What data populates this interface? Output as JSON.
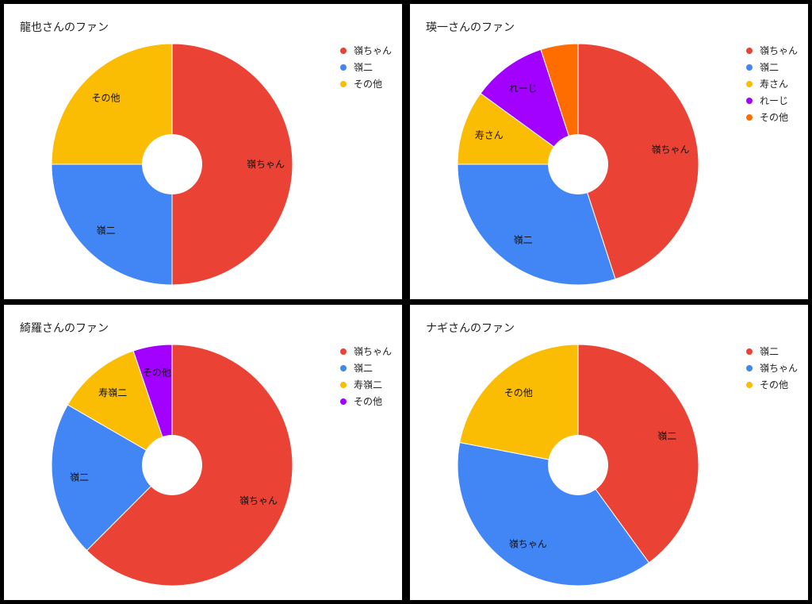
{
  "colors": {
    "red": "#EA4335",
    "blue": "#4285F4",
    "yellow": "#FBBC04",
    "purple": "#A200FF",
    "orange": "#FF6D01"
  },
  "chart_data": [
    {
      "type": "pie",
      "title": "龍也さんのファン",
      "legend_position": "right",
      "categories": [
        "嶺ちゃん",
        "嶺二",
        "その他"
      ],
      "values": [
        50,
        25,
        25
      ],
      "colors": [
        "#EA4335",
        "#4285F4",
        "#FBBC04"
      ],
      "slice_labels": [
        "嶺ちゃん",
        "嶺二",
        "その他"
      ]
    },
    {
      "type": "pie",
      "title": "瑛一さんのファン",
      "legend_position": "right",
      "categories": [
        "嶺ちゃん",
        "嶺二",
        "寿さん",
        "れーじ",
        "その他"
      ],
      "values": [
        45,
        30,
        10,
        10,
        5
      ],
      "colors": [
        "#EA4335",
        "#4285F4",
        "#FBBC04",
        "#A200FF",
        "#FF6D01"
      ],
      "slice_labels": [
        "嶺ちゃん",
        "嶺二",
        "寿さん",
        "れーじ",
        ""
      ]
    },
    {
      "type": "pie",
      "title": "綺羅さんのファン",
      "legend_position": "right",
      "categories": [
        "嶺ちゃん",
        "嶺二",
        "寿嶺二",
        "その他"
      ],
      "values": [
        60,
        20,
        11,
        5
      ],
      "colors": [
        "#EA4335",
        "#4285F4",
        "#FBBC04",
        "#A200FF"
      ],
      "slice_labels": [
        "嶺ちゃん",
        "嶺二",
        "寿嶺二",
        "その他"
      ]
    },
    {
      "type": "pie",
      "title": "ナギさんのファン",
      "legend_position": "right",
      "categories": [
        "嶺二",
        "嶺ちゃん",
        "その他"
      ],
      "values": [
        40,
        38,
        22
      ],
      "colors": [
        "#EA4335",
        "#4285F4",
        "#FBBC04"
      ],
      "slice_labels": [
        "嶺二",
        "嶺ちゃん",
        "その他"
      ]
    }
  ]
}
